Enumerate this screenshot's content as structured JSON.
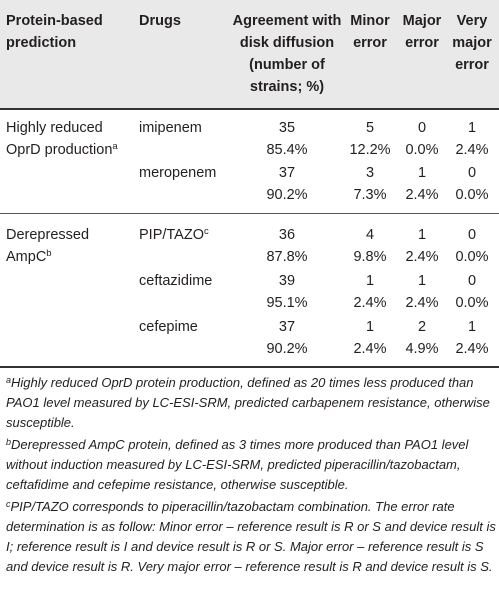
{
  "headers": {
    "prediction": [
      "Protein-based",
      "prediction"
    ],
    "drugs": "Drugs",
    "agreement": [
      "Agreement with",
      "disk diffusion",
      "(number of",
      "strains; %)"
    ],
    "minor": [
      "Minor",
      "error"
    ],
    "major": [
      "Major",
      "error"
    ],
    "very_major": [
      "Very",
      "major",
      "error"
    ]
  },
  "groups": [
    {
      "prediction_line1": "Highly reduced",
      "prediction_line2": "OprD production",
      "prediction_sup": "a",
      "rows": [
        {
          "drug": "imipenem",
          "drug_sup": "",
          "agreement": [
            "35",
            "85.4%"
          ],
          "minor": [
            "5",
            "12.2%"
          ],
          "major": [
            "0",
            "0.0%"
          ],
          "very_major": [
            "1",
            "2.4%"
          ]
        },
        {
          "drug": "meropenem",
          "drug_sup": "",
          "agreement": [
            "37",
            "90.2%"
          ],
          "minor": [
            "3",
            "7.3%"
          ],
          "major": [
            "1",
            "2.4%"
          ],
          "very_major": [
            "0",
            "0.0%"
          ]
        }
      ]
    },
    {
      "prediction_line1": "Derepressed",
      "prediction_line2": "AmpC",
      "prediction_sup": "b",
      "rows": [
        {
          "drug": "PIP/TAZO",
          "drug_sup": "c",
          "agreement": [
            "36",
            "87.8%"
          ],
          "minor": [
            "4",
            "9.8%"
          ],
          "major": [
            "1",
            "2.4%"
          ],
          "very_major": [
            "0",
            "0.0%"
          ]
        },
        {
          "drug": "ceftazidime",
          "drug_sup": "",
          "agreement": [
            "39",
            "95.1%"
          ],
          "minor": [
            "1",
            "2.4%"
          ],
          "major": [
            "1",
            "2.4%"
          ],
          "very_major": [
            "0",
            "0.0%"
          ]
        },
        {
          "drug": "cefepime",
          "drug_sup": "",
          "agreement": [
            "37",
            "90.2%"
          ],
          "minor": [
            "1",
            "2.4%"
          ],
          "major": [
            "2",
            "4.9%"
          ],
          "very_major": [
            "1",
            "2.4%"
          ]
        }
      ]
    }
  ],
  "footnotes": [
    {
      "mark": "a",
      "text": "Highly reduced OprD protein production, defined as 20 times less produced than PAO1 level measured by LC-ESI-SRM, predicted carbapenem resistance, otherwise susceptible."
    },
    {
      "mark": "b",
      "text": "Derepressed AmpC protein, defined as 3 times more produced than PAO1 level without induction measured by LC-ESI-SRM, predicted piperacillin/tazobactam, ceftafidime and cefepime resistance, otherwise susceptible."
    },
    {
      "mark": "c",
      "text": "PIP/TAZO corresponds to piperacillin/tazobactam combination. The error rate determination is as follow: Minor error – reference result is R or S and device result is I; reference result is I and device result is R or S. Major error – reference result is S and device result is R. Very major error – reference result is R and device result is S."
    }
  ],
  "colors": {
    "header_background": "#e9e9e9",
    "text": "#231f20"
  }
}
